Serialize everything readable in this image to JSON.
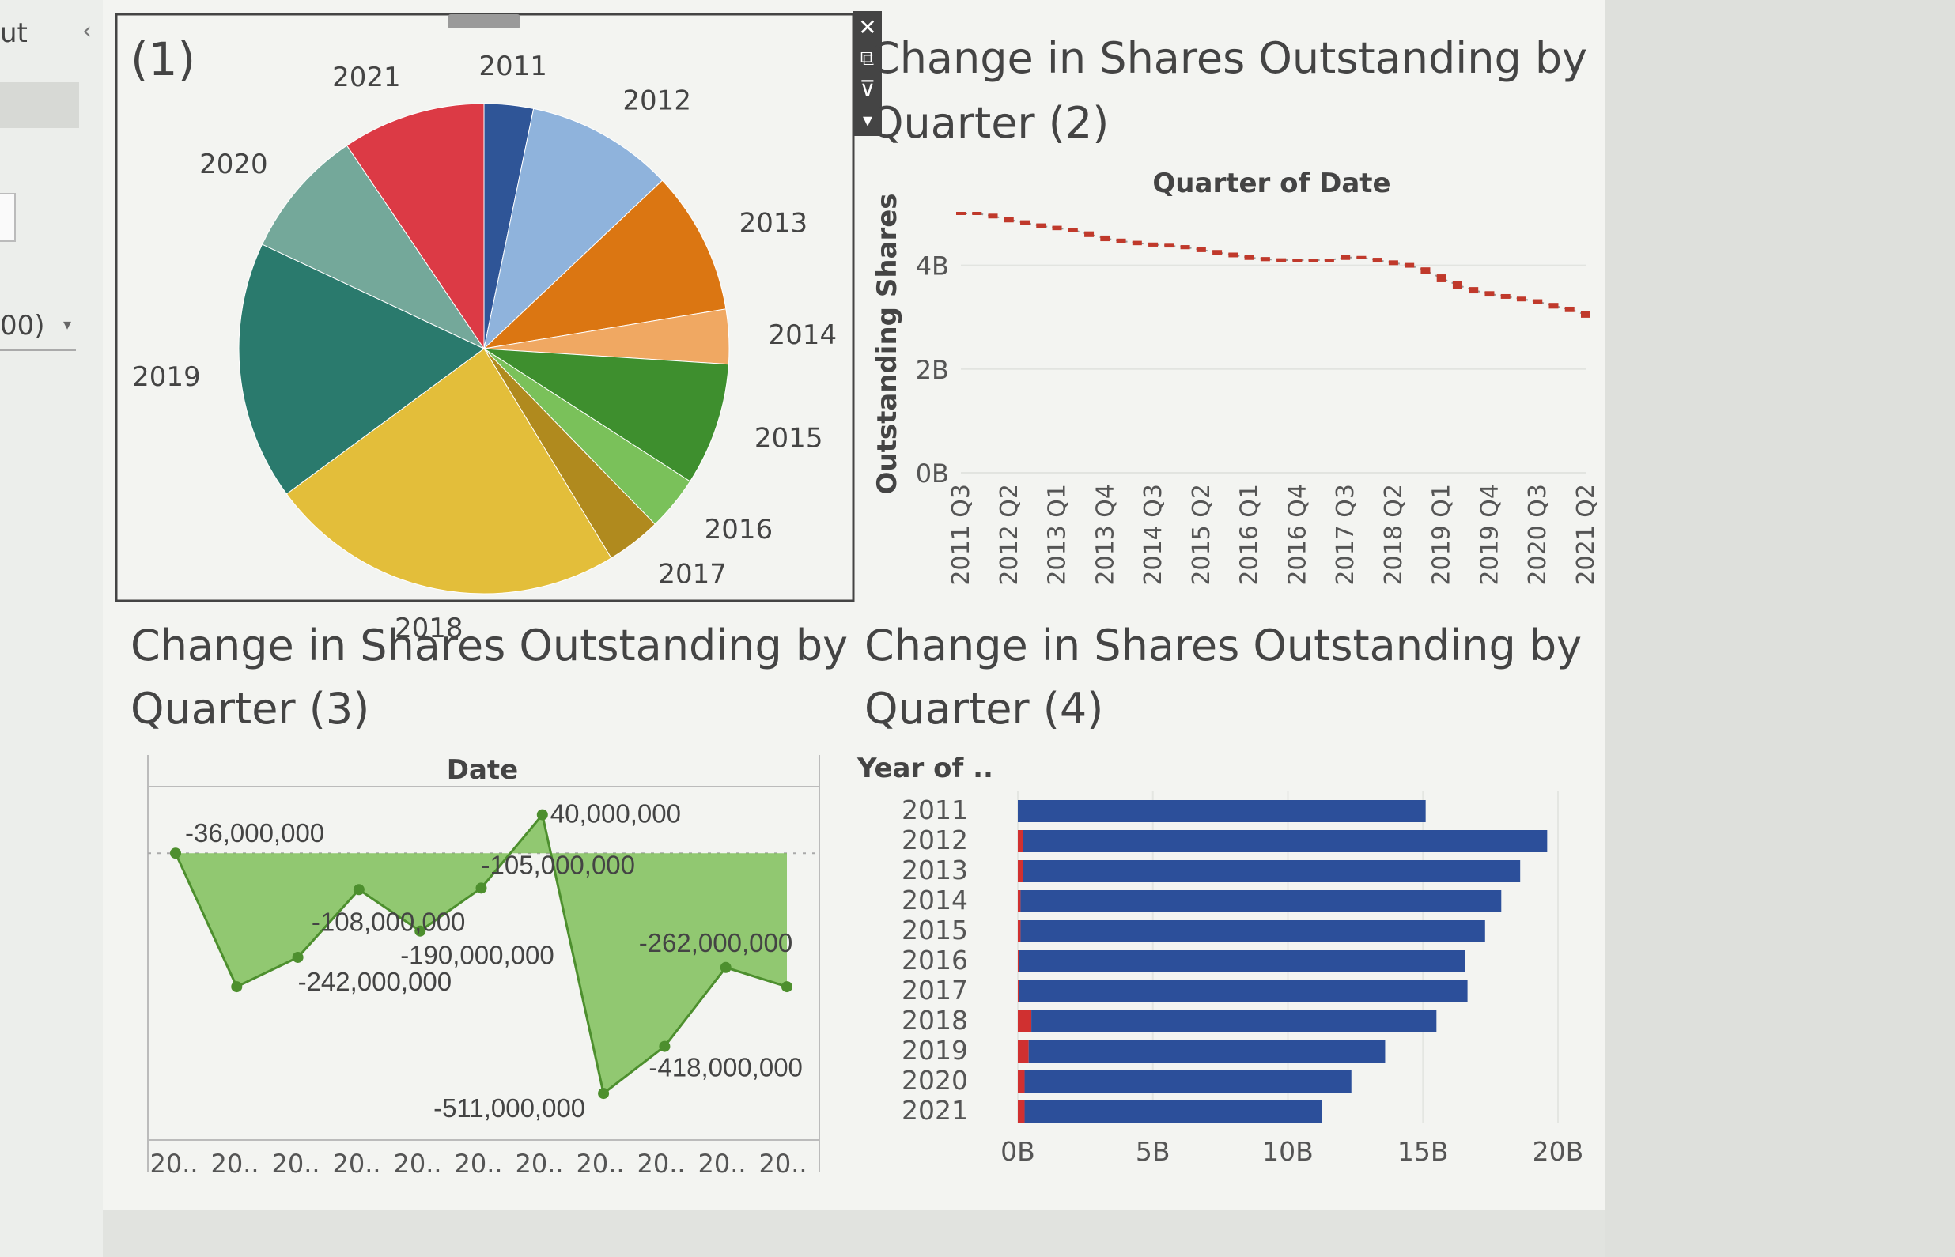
{
  "sidebar": {
    "label_fragment": "ut",
    "collapse_glyph": "‹",
    "select_fragment": "00)",
    "select_chevron": "▾"
  },
  "toolbar": {
    "icons": [
      "close-icon",
      "open-new-window-icon",
      "filter-icon",
      "more-options-icon"
    ],
    "glyphs": {
      "close": "✕",
      "open": "⧉",
      "filter": "⊽",
      "more": "▾"
    }
  },
  "chart_data": [
    {
      "id": "pie",
      "type": "pie",
      "title": "(1)",
      "slices": [
        {
          "label": "2011",
          "value": 36,
          "color": "#2f5597"
        },
        {
          "label": "2012",
          "value": 108,
          "color": "#8fb3dc"
        },
        {
          "label": "2013",
          "value": 105,
          "color": "#db7612"
        },
        {
          "label": "2014",
          "value": 40,
          "color": "#f0a862"
        },
        {
          "label": "2015",
          "value": 90,
          "color": "#3e8f2e"
        },
        {
          "label": "2016",
          "value": 40,
          "color": "#7ac15a"
        },
        {
          "label": "2017",
          "value": 40,
          "color": "#b08a1e"
        },
        {
          "label": "2018",
          "value": 262,
          "color": "#e3be3a"
        },
        {
          "label": "2019",
          "value": 190,
          "color": "#2a7a6d"
        },
        {
          "label": "2020",
          "value": 95,
          "color": "#74a89a"
        },
        {
          "label": "2021",
          "value": 105,
          "color": "#dc3a45"
        }
      ]
    },
    {
      "id": "line",
      "type": "line",
      "title": "Change in Shares Outstanding by Quarter (2)",
      "xlabel": "Quarter of Date",
      "ylabel": "Outstanding Shares",
      "ylim": [
        0,
        5
      ],
      "yticks": [
        {
          "v": 0,
          "label": "0B"
        },
        {
          "v": 2,
          "label": "2B"
        },
        {
          "v": 4,
          "label": "4B"
        }
      ],
      "x": [
        "2011 Q3",
        "2011 Q4",
        "2012 Q1",
        "2012 Q2",
        "2012 Q3",
        "2012 Q4",
        "2013 Q1",
        "2013 Q2",
        "2013 Q3",
        "2013 Q4",
        "2014 Q1",
        "2014 Q2",
        "2014 Q3",
        "2014 Q4",
        "2015 Q1",
        "2015 Q2",
        "2015 Q3",
        "2015 Q4",
        "2016 Q1",
        "2016 Q2",
        "2016 Q3",
        "2016 Q4",
        "2017 Q1",
        "2017 Q2",
        "2017 Q3",
        "2017 Q4",
        "2018 Q1",
        "2018 Q2",
        "2018 Q3",
        "2018 Q4",
        "2019 Q1",
        "2019 Q2",
        "2019 Q3",
        "2019 Q4",
        "2020 Q1",
        "2020 Q2",
        "2020 Q3",
        "2020 Q4",
        "2021 Q1",
        "2021 Q2"
      ],
      "xtick_labels": [
        "2011 Q3",
        "2012 Q2",
        "2013 Q1",
        "2013 Q4",
        "2014 Q3",
        "2015 Q2",
        "2016 Q1",
        "2016 Q4",
        "2017 Q3",
        "2018 Q2",
        "2019 Q1",
        "2019 Q4",
        "2020 Q3",
        "2021 Q2"
      ],
      "values": [
        5.0,
        5.0,
        4.95,
        4.88,
        4.82,
        4.76,
        4.72,
        4.68,
        4.6,
        4.52,
        4.47,
        4.43,
        4.4,
        4.38,
        4.35,
        4.3,
        4.25,
        4.2,
        4.15,
        4.12,
        4.1,
        4.1,
        4.1,
        4.1,
        4.15,
        4.15,
        4.1,
        4.05,
        4.0,
        3.9,
        3.75,
        3.62,
        3.52,
        3.45,
        3.4,
        3.35,
        3.3,
        3.22,
        3.15,
        3.05
      ],
      "series_color": "#c0392b"
    },
    {
      "id": "area",
      "type": "area",
      "title": "Change in Shares Outstanding by Quarter (3)",
      "xlabel": "Date",
      "x_tick_label": "20..",
      "x_tick_count": 11,
      "ylim": [
        -600,
        80
      ],
      "values": [
        -36,
        -300,
        -242,
        -108,
        -190,
        -105,
        40,
        -511,
        -418,
        -262,
        -300
      ],
      "labels": [
        "-36,000,000",
        "",
        "-242,000,000",
        "-108,000,000",
        "-190,000,000",
        "-105,000,000",
        "40,000,000",
        "-511,000,000",
        "-418,000,000",
        "-262,000,000",
        ""
      ],
      "fill_color": "#7fbf5a",
      "line_color": "#4d8f2e"
    },
    {
      "id": "hbar",
      "type": "bar",
      "title": "Change in Shares Outstanding by Quarter (4)",
      "ylabel": "Year of ..",
      "xlim": [
        0,
        20
      ],
      "xticks": [
        {
          "v": 0,
          "label": "0B"
        },
        {
          "v": 5,
          "label": "5B"
        },
        {
          "v": 10,
          "label": "10B"
        },
        {
          "v": 15,
          "label": "15B"
        },
        {
          "v": 20,
          "label": "20B"
        }
      ],
      "categories": [
        "2011",
        "2012",
        "2013",
        "2014",
        "2015",
        "2016",
        "2017",
        "2018",
        "2019",
        "2020",
        "2021"
      ],
      "series": [
        {
          "values": [
            0.0,
            0.2,
            0.2,
            0.1,
            0.1,
            0.05,
            0.05,
            0.5,
            0.4,
            0.25,
            0.25
          ],
          "color": "#d03030"
        },
        {
          "values": [
            15.1,
            19.4,
            18.4,
            17.8,
            17.2,
            16.5,
            16.6,
            15.0,
            13.2,
            12.1,
            11.0
          ],
          "color": "#2c4f9a"
        }
      ]
    }
  ]
}
